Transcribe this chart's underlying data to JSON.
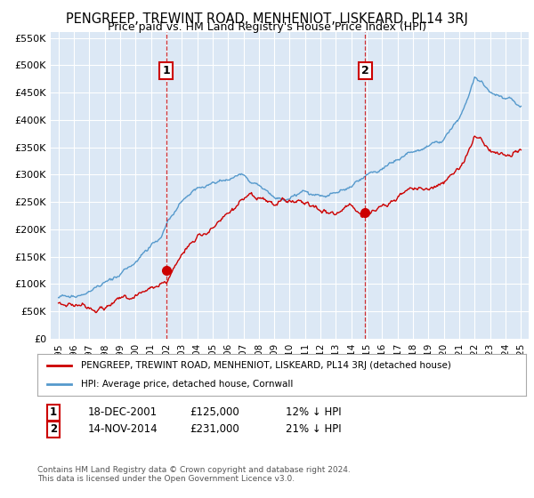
{
  "title": "PENGREEP, TREWINT ROAD, MENHENIOT, LISKEARD, PL14 3RJ",
  "subtitle": "Price paid vs. HM Land Registry's House Price Index (HPI)",
  "bg_color": "#ffffff",
  "plot_bg_color": "#dce8f5",
  "grid_color": "#ffffff",
  "red_color": "#cc0000",
  "blue_color": "#5599cc",
  "sale1_date_x": 2002.0,
  "sale1_price": 125000,
  "sale1_label": "1",
  "sale2_date_x": 2014.88,
  "sale2_price": 231000,
  "sale2_label": "2",
  "ylim_min": 0,
  "ylim_max": 560000,
  "ytick_values": [
    0,
    50000,
    100000,
    150000,
    200000,
    250000,
    300000,
    350000,
    400000,
    450000,
    500000,
    550000
  ],
  "ytick_labels": [
    "£0",
    "£50K",
    "£100K",
    "£150K",
    "£200K",
    "£250K",
    "£300K",
    "£350K",
    "£400K",
    "£450K",
    "£500K",
    "£550K"
  ],
  "xlim_min": 1994.5,
  "xlim_max": 2025.5,
  "xtick_years": [
    1995,
    1996,
    1997,
    1998,
    1999,
    2000,
    2001,
    2002,
    2003,
    2004,
    2005,
    2006,
    2007,
    2008,
    2009,
    2010,
    2011,
    2012,
    2013,
    2014,
    2015,
    2016,
    2017,
    2018,
    2019,
    2020,
    2021,
    2022,
    2023,
    2024,
    2025
  ],
  "legend_red_label": "PENGREEP, TREWINT ROAD, MENHENIOT, LISKEARD, PL14 3RJ (detached house)",
  "legend_blue_label": "HPI: Average price, detached house, Cornwall",
  "ann1_date": "18-DEC-2001",
  "ann1_price": "£125,000",
  "ann1_pct": "12% ↓ HPI",
  "ann2_date": "14-NOV-2014",
  "ann2_price": "£231,000",
  "ann2_pct": "21% ↓ HPI",
  "footer": "Contains HM Land Registry data © Crown copyright and database right 2024.\nThis data is licensed under the Open Government Licence v3.0."
}
